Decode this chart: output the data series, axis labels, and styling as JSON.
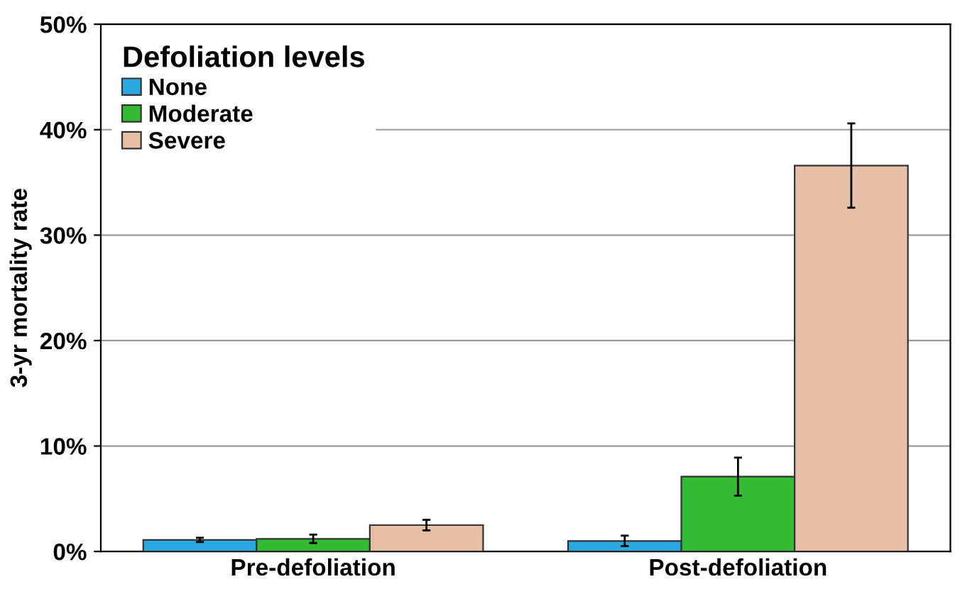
{
  "chart_data": {
    "type": "bar",
    "ylabel": "3-yr mortality rate",
    "legend_title": "Defoliation levels",
    "categories": [
      "Pre-defoliation",
      "Post-defoliation"
    ],
    "series": [
      {
        "name": "None",
        "color": "#29a9e0",
        "values": [
          1.1,
          1.0
        ],
        "errors": [
          0.2,
          0.5
        ]
      },
      {
        "name": "Moderate",
        "color": "#33bb33",
        "values": [
          1.2,
          7.1
        ],
        "errors": [
          0.4,
          1.8
        ]
      },
      {
        "name": "Severe",
        "color": "#e6bfa5",
        "values": [
          2.5,
          36.6
        ],
        "errors": [
          0.5,
          4.0
        ]
      }
    ],
    "ylim": [
      0,
      50
    ],
    "yticks": [
      {
        "value": 0,
        "label": "0%"
      },
      {
        "value": 10,
        "label": "10%"
      },
      {
        "value": 20,
        "label": "20%"
      },
      {
        "value": 30,
        "label": "30%"
      },
      {
        "value": 40,
        "label": "40%"
      },
      {
        "value": 50,
        "label": "50%"
      }
    ],
    "grid": "y",
    "legend": "top left"
  }
}
